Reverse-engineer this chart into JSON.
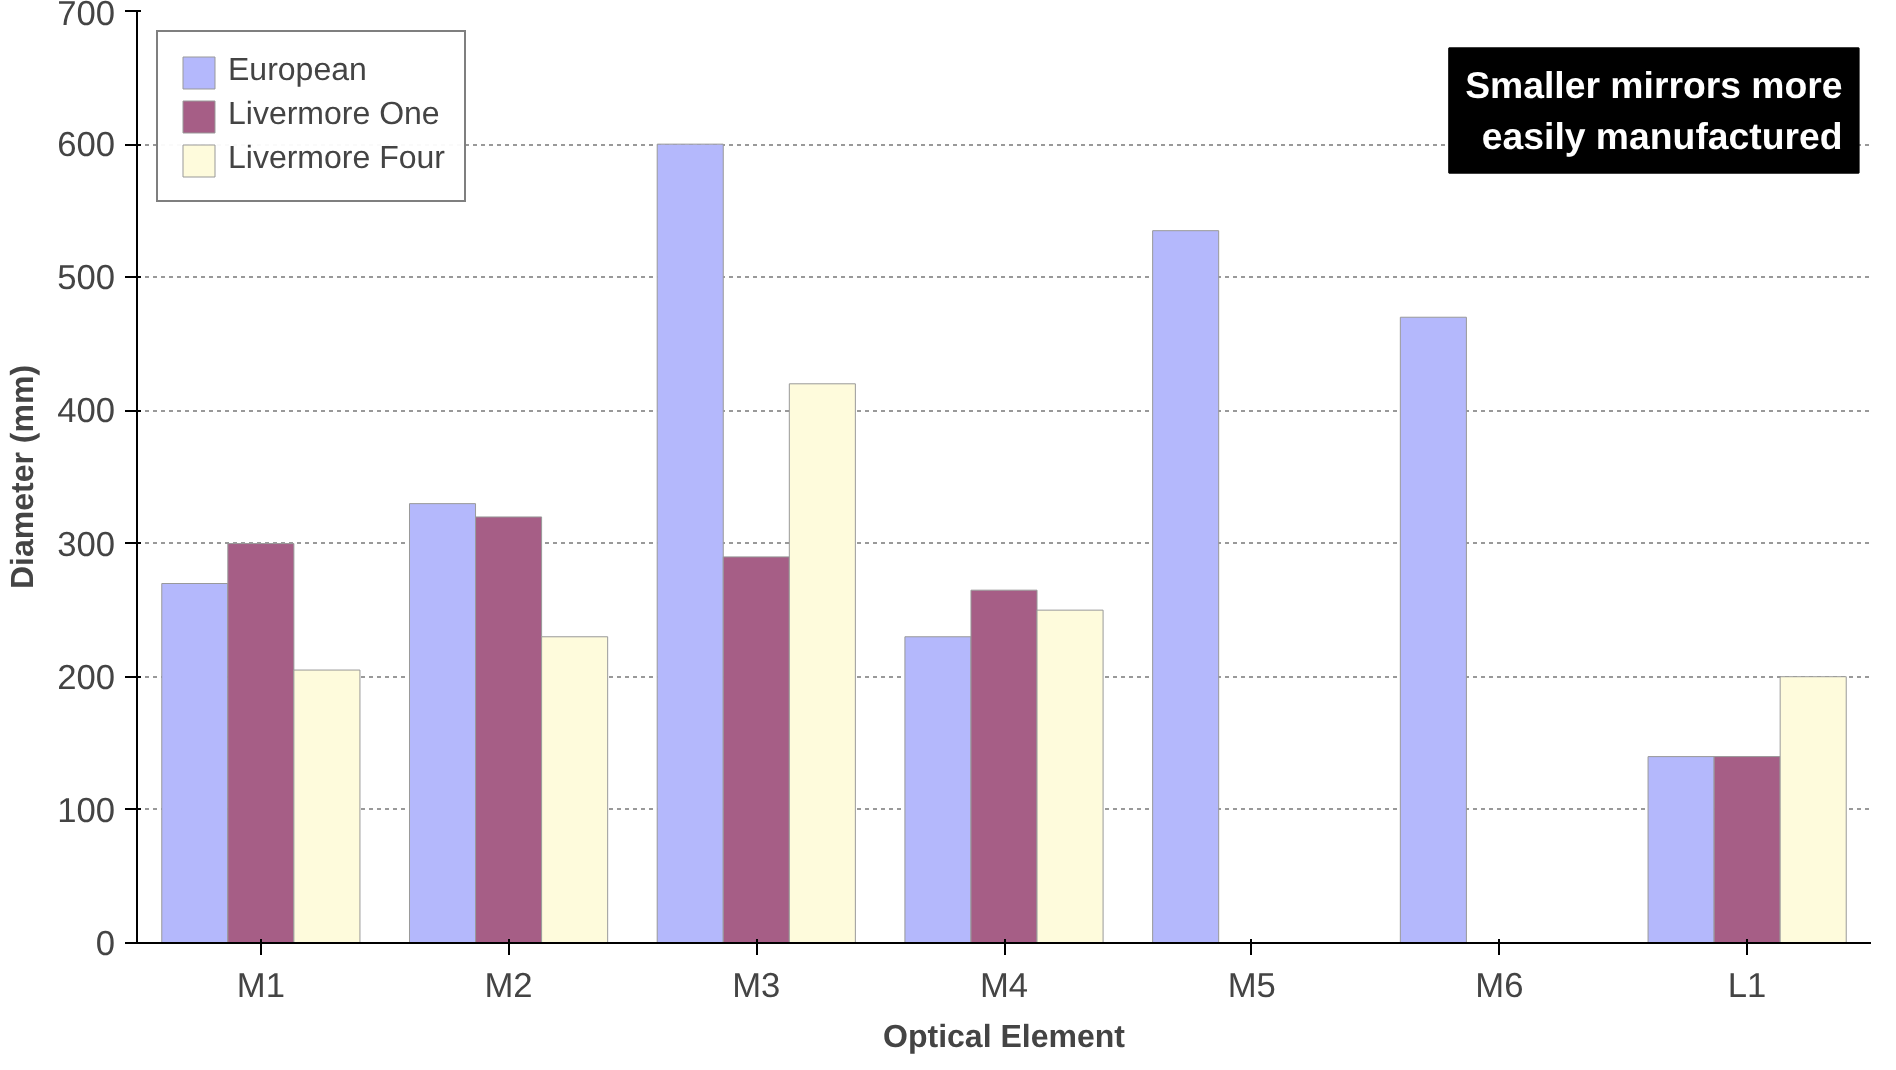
{
  "chart_data": {
    "type": "bar",
    "xlabel": "Optical Element",
    "ylabel": "Diameter (mm)",
    "categories": [
      "M1",
      "M2",
      "M3",
      "M4",
      "M5",
      "M6",
      "L1"
    ],
    "series": [
      {
        "name": "European",
        "color": "#b4b8fc",
        "values": [
          270,
          330,
          600,
          230,
          535,
          470,
          140
        ]
      },
      {
        "name": "Livermore One",
        "color": "#a65e86",
        "values": [
          300,
          320,
          290,
          265,
          null,
          null,
          140
        ]
      },
      {
        "name": "Livermore Four",
        "color": "#fefbdc",
        "values": [
          205,
          230,
          420,
          250,
          null,
          null,
          200
        ]
      }
    ],
    "ylim": [
      0,
      700
    ],
    "yticks": [
      0,
      100,
      200,
      300,
      400,
      500,
      600,
      700
    ],
    "grid": "y",
    "legend": "top left",
    "annotations": [
      "Smaller mirrors more\neasily manufactured"
    ]
  }
}
